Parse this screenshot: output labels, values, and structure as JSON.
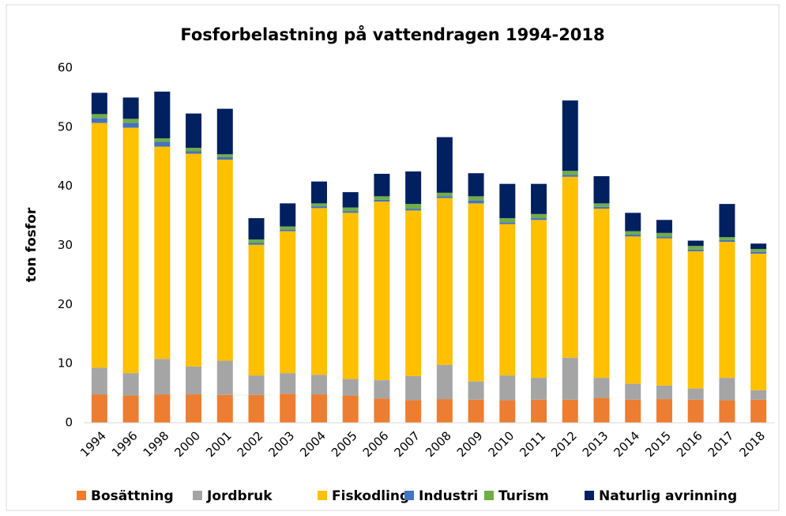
{
  "chart_data": {
    "type": "stacked_bar",
    "title": "Fosforbelastning på vattendragen 1994-2018",
    "y_label": "ton fosfor",
    "categories": [
      "1994",
      "1996",
      "1998",
      "2000",
      "2001",
      "2002",
      "2003",
      "2004",
      "2005",
      "2006",
      "2007",
      "2008",
      "2009",
      "2010",
      "2011",
      "2012",
      "2013",
      "2014",
      "2015",
      "2016",
      "2017",
      "2018"
    ],
    "series": [
      {
        "name": "Bosättning",
        "color": "#ed7d31",
        "values": [
          4.8,
          4.6,
          4.8,
          4.8,
          4.7,
          4.7,
          4.9,
          4.8,
          4.6,
          4.1,
          3.8,
          4.0,
          3.9,
          3.8,
          3.9,
          3.9,
          4.2,
          3.9,
          4.0,
          3.9,
          3.8,
          3.9
        ]
      },
      {
        "name": "Jordbruk",
        "color": "#a5a5a5",
        "values": [
          4.5,
          3.8,
          6.0,
          4.7,
          5.8,
          3.3,
          3.5,
          3.3,
          2.8,
          3.1,
          4.1,
          5.8,
          3.1,
          4.2,
          3.7,
          7.1,
          3.4,
          2.7,
          2.3,
          1.9,
          3.8,
          1.6
        ]
      },
      {
        "name": "Fiskodling",
        "color": "#ffc000",
        "values": [
          41.4,
          41.5,
          35.9,
          36.0,
          34.0,
          22.1,
          24.0,
          28.2,
          28.1,
          30.2,
          28.0,
          28.2,
          30.1,
          25.6,
          26.7,
          30.6,
          28.6,
          24.9,
          24.9,
          23.2,
          23.0,
          23.1
        ]
      },
      {
        "name": "Industri",
        "color": "#4472c4",
        "values": [
          0.8,
          0.8,
          0.8,
          0.4,
          0.4,
          0.3,
          0.3,
          0.3,
          0.3,
          0.3,
          0.3,
          0.3,
          0.5,
          0.3,
          0.3,
          0.3,
          0.3,
          0.3,
          0.3,
          0.3,
          0.3,
          0.3
        ]
      },
      {
        "name": "Turism",
        "color": "#70ad47",
        "values": [
          0.7,
          0.7,
          0.6,
          0.6,
          0.5,
          0.6,
          0.5,
          0.5,
          0.6,
          0.6,
          0.8,
          0.6,
          0.7,
          0.7,
          0.7,
          0.7,
          0.6,
          0.6,
          0.6,
          0.6,
          0.5,
          0.5
        ]
      },
      {
        "name": "Naturlig avrinning",
        "color": "#002060",
        "values": [
          3.6,
          3.6,
          7.9,
          5.8,
          7.7,
          3.6,
          3.9,
          3.7,
          2.6,
          3.8,
          5.5,
          9.4,
          3.9,
          5.8,
          5.1,
          11.9,
          4.6,
          3.1,
          2.2,
          0.9,
          5.6,
          0.9
        ]
      }
    ],
    "ylim": [
      0,
      60
    ],
    "yticks": [
      0,
      10,
      20,
      30,
      40,
      50,
      60
    ],
    "grid": false,
    "legend": "bottom"
  }
}
